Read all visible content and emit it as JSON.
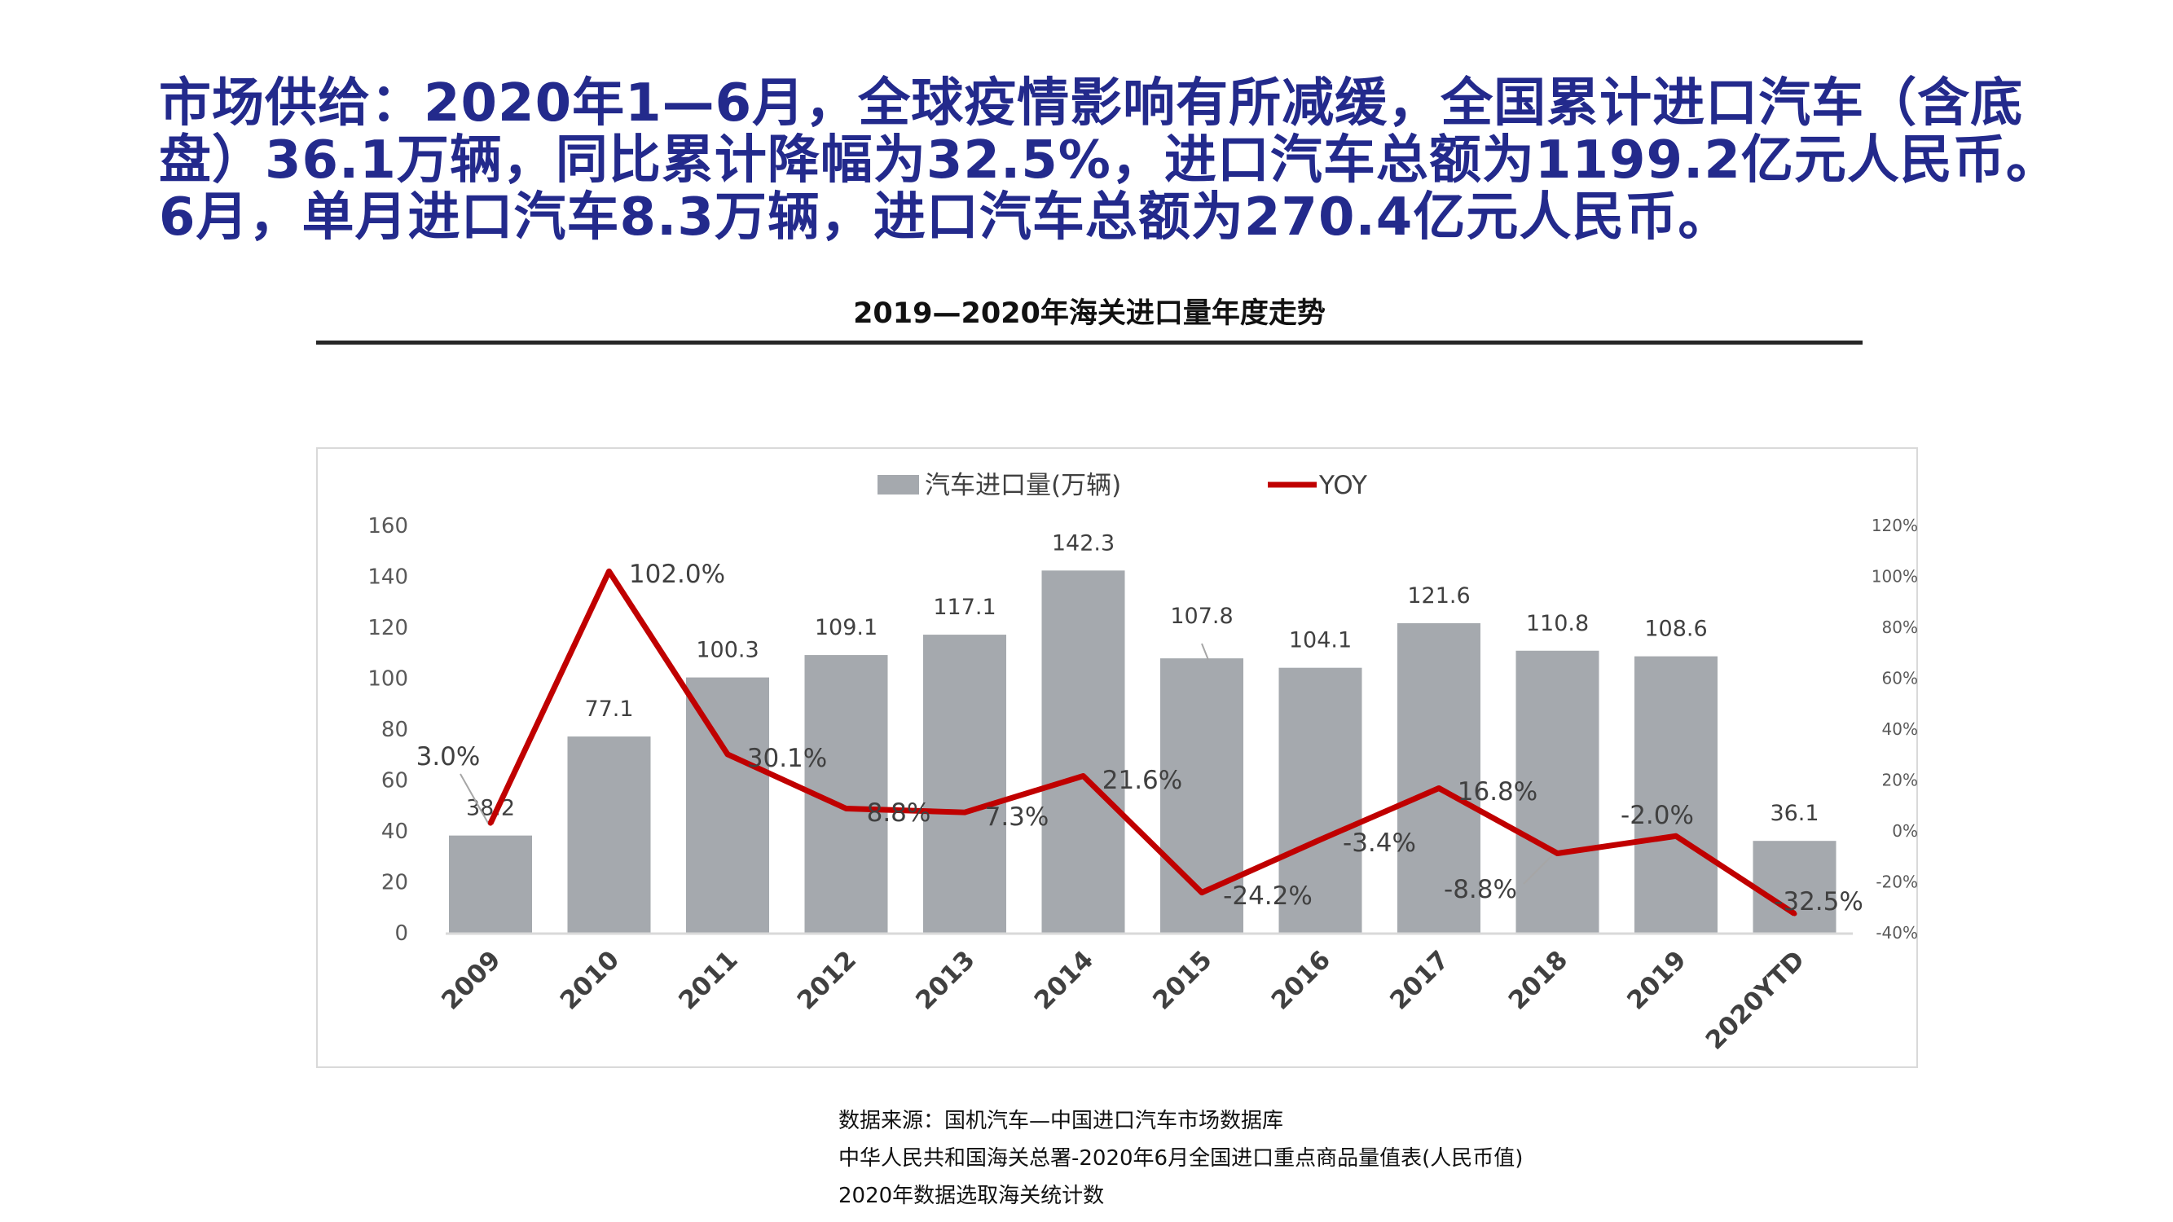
{
  "headline": {
    "lines": [
      "市场供给：2020年1—6月，全球疫情影响有所减缓，全国累计进口汽车（含底",
      "盘）36.1万辆，同比累计降幅为32.5%，进口汽车总额为1199.2亿元人民币。",
      "6月，单月进口汽车8.3万辆，进口汽车总额为270.4亿元人民币。"
    ]
  },
  "chart_data": {
    "type": "bar+line",
    "title": "2019—2020年海关进口量年度走势",
    "categories": [
      "2009",
      "2010",
      "2011",
      "2012",
      "2013",
      "2014",
      "2015",
      "2016",
      "2017",
      "2018",
      "2019",
      "2020YTD"
    ],
    "series": [
      {
        "name": "汽车进口量(万辆)",
        "type": "bar",
        "axis": "left",
        "color": "#a5a9ae",
        "values": [
          38.2,
          77.1,
          100.3,
          109.1,
          117.1,
          142.3,
          107.8,
          104.1,
          121.6,
          110.8,
          108.6,
          36.1
        ],
        "labels": [
          "38.2",
          "77.1",
          "100.3",
          "109.1",
          "117.1",
          "142.3",
          "107.8",
          "104.1",
          "121.6",
          "110.8",
          "108.6",
          "36.1"
        ]
      },
      {
        "name": "YOY",
        "type": "line",
        "axis": "right",
        "color": "#c00000",
        "values": [
          3.0,
          102.0,
          30.1,
          8.8,
          7.3,
          21.6,
          -24.2,
          -3.4,
          16.8,
          -8.8,
          -2.0,
          -32.5
        ],
        "labels": [
          "3.0%",
          "102.0%",
          "30.1%",
          "8.8%",
          "7.3%",
          "21.6%",
          "-24.2%",
          "-3.4%",
          "16.8%",
          "-8.8%",
          "-2.0%",
          "-32.5%"
        ]
      }
    ],
    "y_left": {
      "range": [
        0,
        160
      ],
      "ticks": [
        "0",
        "20",
        "40",
        "60",
        "80",
        "100",
        "120",
        "140",
        "160"
      ]
    },
    "y_right": {
      "range": [
        -40,
        120
      ],
      "ticks": [
        "-40%",
        "-20%",
        "0%",
        "20%",
        "40%",
        "60%",
        "80%",
        "100%",
        "120%"
      ]
    },
    "legend": "top-center",
    "grid": false
  },
  "sources": [
    "数据来源：国机汽车—中国进口汽车市场数据库",
    "中华人民共和国海关总署-2020年6月全国进口重点商品量值表(人民币值)",
    "2020年数据选取海关统计数"
  ]
}
